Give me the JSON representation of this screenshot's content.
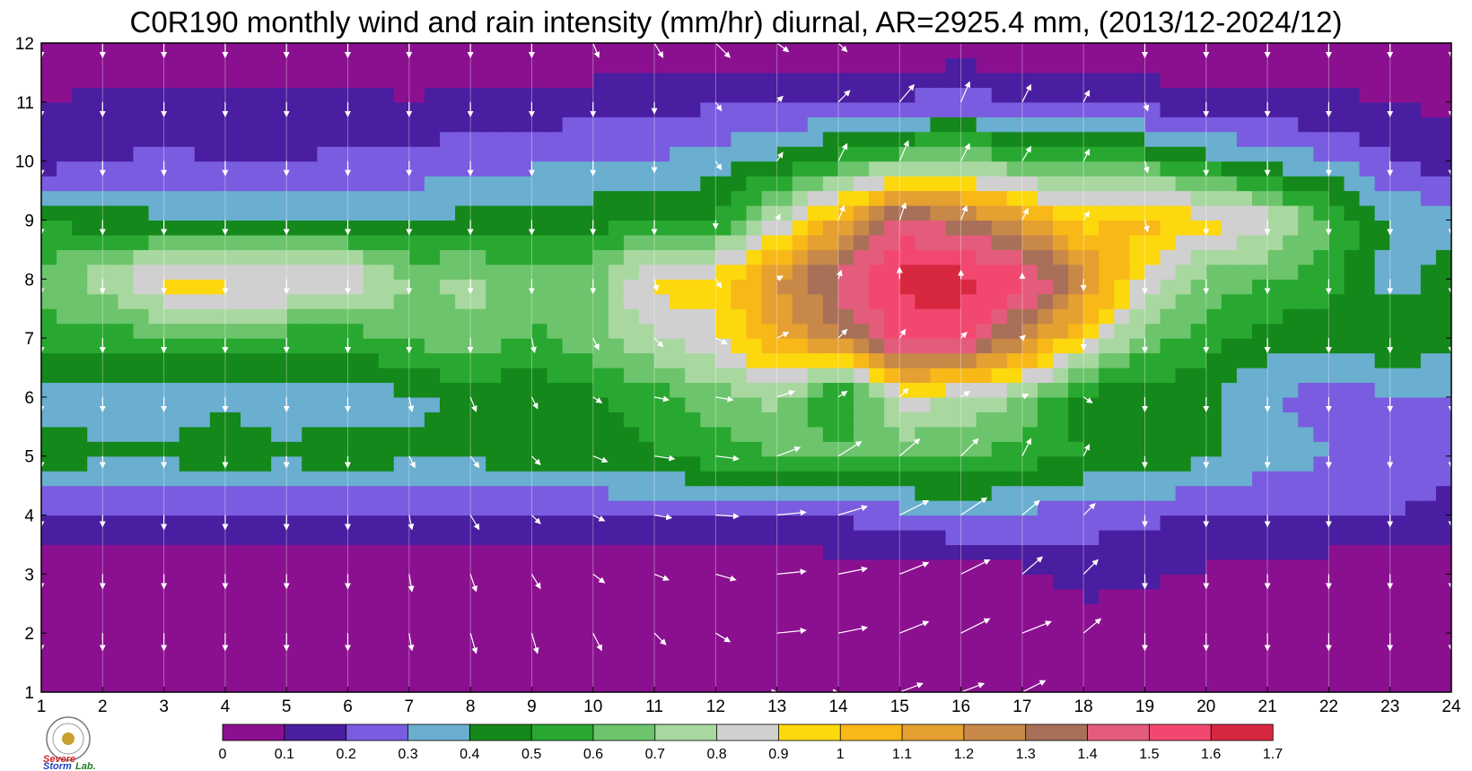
{
  "chart_data": {
    "type": "heatmap",
    "title": "C0R190 monthly wind and rain intensity (mm/hr) diurnal, AR=2925.4 mm, (2013/12-2024/12)",
    "x_ticks": [
      "1",
      "2",
      "3",
      "4",
      "5",
      "6",
      "7",
      "8",
      "9",
      "10",
      "11",
      "12",
      "13",
      "14",
      "15",
      "16",
      "17",
      "18",
      "19",
      "20",
      "21",
      "22",
      "23",
      "24"
    ],
    "y_ticks": [
      "1",
      "2",
      "3",
      "4",
      "5",
      "6",
      "7",
      "8",
      "9",
      "10",
      "11",
      "12"
    ],
    "xlim": [
      1,
      24
    ],
    "ylim": [
      1,
      12
    ],
    "x_axis_meaning": "hour",
    "y_axis_meaning": "month",
    "colorbar": {
      "levels": [
        0,
        0.1,
        0.2,
        0.3,
        0.4,
        0.5,
        0.6,
        0.7,
        0.8,
        0.9,
        1,
        1.1,
        1.2,
        1.3,
        1.4,
        1.5,
        1.6,
        1.7
      ],
      "labels": [
        "0",
        "0.1",
        "0.2",
        "0.3",
        "0.4",
        "0.5",
        "0.6",
        "0.7",
        "0.8",
        "0.9",
        "1",
        "1.1",
        "1.2",
        "1.3",
        "1.4",
        "1.5",
        "1.6",
        "1.7"
      ],
      "colors": [
        "#8b1090",
        "#4a1ea0",
        "#7a5ce0",
        "#6aaed0",
        "#14881a",
        "#28a830",
        "#6cc46c",
        "#a8d8a0",
        "#d0d0d0",
        "#fcd80c",
        "#f8b818",
        "#e4a030",
        "#c88848",
        "#a87058",
        "#e45c7c",
        "#f24870",
        "#d82840"
      ]
    },
    "contour_line_color": "#f0a020",
    "intensity_grid": [
      [
        0.02,
        0.02,
        0.02,
        0.02,
        0.02,
        0.02,
        0.02,
        0.02,
        0.02,
        0.02,
        0.02,
        0.02,
        0.02,
        0.02,
        0.02,
        0.02,
        0.02,
        0.02,
        0.02,
        0.02,
        0.02,
        0.02,
        0.02,
        0.02
      ],
      [
        0.02,
        0.02,
        0.02,
        0.02,
        0.02,
        0.02,
        0.02,
        0.02,
        0.02,
        0.02,
        0.02,
        0.02,
        0.02,
        0.02,
        0.02,
        0.02,
        0.03,
        0.03,
        0.03,
        0.03,
        0.02,
        0.02,
        0.02,
        0.02
      ],
      [
        0.03,
        0.03,
        0.05,
        0.03,
        0.03,
        0.03,
        0.03,
        0.03,
        0.03,
        0.03,
        0.03,
        0.03,
        0.03,
        0.03,
        0.05,
        0.06,
        0.07,
        0.15,
        0.12,
        0.09,
        0.05,
        0.04,
        0.03,
        0.03
      ],
      [
        0.2,
        0.18,
        0.18,
        0.19,
        0.2,
        0.21,
        0.2,
        0.2,
        0.2,
        0.2,
        0.2,
        0.2,
        0.2,
        0.22,
        0.25,
        0.3,
        0.28,
        0.24,
        0.22,
        0.2,
        0.2,
        0.2,
        0.2,
        0.15
      ],
      [
        0.45,
        0.42,
        0.42,
        0.45,
        0.42,
        0.45,
        0.42,
        0.42,
        0.45,
        0.45,
        0.5,
        0.55,
        0.6,
        0.65,
        0.62,
        0.62,
        0.55,
        0.5,
        0.48,
        0.42,
        0.35,
        0.3,
        0.28,
        0.25
      ],
      [
        0.35,
        0.35,
        0.35,
        0.38,
        0.35,
        0.35,
        0.38,
        0.42,
        0.42,
        0.48,
        0.55,
        0.65,
        0.75,
        0.45,
        0.85,
        0.8,
        0.7,
        0.45,
        0.45,
        0.42,
        0.3,
        0.25,
        0.28,
        0.3
      ],
      [
        0.55,
        0.55,
        0.58,
        0.55,
        0.55,
        0.55,
        0.6,
        0.7,
        0.58,
        0.65,
        0.8,
        0.88,
        1.1,
        1.25,
        1.55,
        1.55,
        1.25,
        0.95,
        0.65,
        0.55,
        0.45,
        0.45,
        0.48,
        0.45
      ],
      [
        0.65,
        0.75,
        0.95,
        0.95,
        0.95,
        0.9,
        0.7,
        0.72,
        0.65,
        0.65,
        0.95,
        0.95,
        1.2,
        1.45,
        1.62,
        1.65,
        1.55,
        1.25,
        0.85,
        0.65,
        0.6,
        0.55,
        0.35,
        0.45
      ],
      [
        0.5,
        0.45,
        0.42,
        0.42,
        0.42,
        0.42,
        0.42,
        0.42,
        0.42,
        0.45,
        0.5,
        0.5,
        0.8,
        1.1,
        1.45,
        1.35,
        1.15,
        0.95,
        1.05,
        0.95,
        0.85,
        0.6,
        0.4,
        0.35
      ],
      [
        0.15,
        0.2,
        0.22,
        0.2,
        0.2,
        0.22,
        0.22,
        0.28,
        0.28,
        0.32,
        0.3,
        0.35,
        0.42,
        0.55,
        0.65,
        0.7,
        0.62,
        0.55,
        0.55,
        0.45,
        0.35,
        0.32,
        0.2,
        0.15
      ],
      [
        0.1,
        0.12,
        0.12,
        0.12,
        0.12,
        0.12,
        0.11,
        0.12,
        0.12,
        0.15,
        0.18,
        0.18,
        0.18,
        0.2,
        0.22,
        0.24,
        0.21,
        0.18,
        0.16,
        0.12,
        0.12,
        0.12,
        0.1,
        0.08
      ],
      [
        0.02,
        0.02,
        0.02,
        0.02,
        0.02,
        0.02,
        0.02,
        0.02,
        0.02,
        0.02,
        0.02,
        0.02,
        0.02,
        0.02,
        0.02,
        0.02,
        0.02,
        0.02,
        0.02,
        0.02,
        0.02,
        0.02,
        0.02,
        0.02
      ]
    ],
    "wind_grid_u": [
      [
        0,
        0,
        0,
        0,
        0,
        0,
        0,
        0,
        0,
        0,
        0,
        0,
        0,
        0,
        0.8,
        0.8,
        0.8,
        0,
        0,
        0,
        0,
        0,
        0,
        0
      ],
      [
        0,
        0,
        0,
        0,
        0,
        0,
        0.1,
        0.2,
        0.2,
        0.3,
        0.4,
        0.5,
        1.0,
        1.0,
        1.0,
        1.0,
        1.0,
        0.6,
        0,
        0,
        0,
        0,
        0,
        0
      ],
      [
        0,
        0,
        0,
        0,
        0,
        0,
        0.1,
        0.2,
        0.3,
        0.4,
        0.5,
        0.7,
        1.0,
        1.0,
        1.0,
        1.0,
        0.7,
        0.5,
        0,
        0,
        0,
        0,
        0,
        0
      ],
      [
        0,
        0,
        0,
        0,
        0,
        0,
        0.1,
        0.3,
        0.3,
        0.4,
        0.6,
        0.8,
        1.0,
        1.0,
        1.0,
        0.9,
        0.6,
        0.4,
        0,
        0,
        0,
        0,
        0,
        0
      ],
      [
        0,
        0,
        0,
        0,
        0,
        0,
        0.2,
        0.3,
        0.3,
        0.5,
        0.7,
        0.8,
        0.8,
        0.8,
        0.7,
        0.6,
        0.3,
        0.2,
        0,
        0,
        0,
        0,
        0,
        0
      ],
      [
        0,
        0,
        0,
        0,
        0,
        0,
        0.1,
        0.2,
        0.2,
        0.3,
        0.5,
        0.6,
        0.6,
        0.3,
        0.3,
        0.3,
        0.2,
        0.3,
        0,
        0,
        0,
        0,
        0,
        0
      ],
      [
        0,
        0,
        0,
        0,
        0,
        0,
        0,
        0,
        0.1,
        0.2,
        0.3,
        0.4,
        0.4,
        0.3,
        0.2,
        0.2,
        0.1,
        0,
        0,
        0,
        0,
        0,
        0,
        0
      ],
      [
        0,
        0,
        0,
        0,
        0,
        0,
        0,
        0,
        0,
        0,
        0.1,
        0.2,
        0.2,
        0.1,
        0,
        0,
        0,
        0,
        0,
        0,
        0,
        0,
        0,
        0
      ],
      [
        0,
        0,
        0,
        0,
        0,
        0,
        0,
        0,
        0,
        0,
        0,
        0,
        0.1,
        0.2,
        0.2,
        0.2,
        0.2,
        0.2,
        0.1,
        0,
        0,
        0,
        0,
        0
      ],
      [
        0,
        0,
        0,
        0,
        0,
        0,
        0,
        0,
        0,
        0,
        0,
        0.2,
        0.2,
        0.3,
        0.3,
        0.3,
        0.3,
        0.2,
        0.1,
        0,
        0,
        0,
        0,
        0
      ],
      [
        0,
        0,
        0,
        0,
        0,
        0,
        0,
        0,
        0,
        0,
        0,
        0.2,
        0.2,
        0.4,
        0.5,
        0.3,
        0.3,
        0.2,
        0.1,
        0,
        0,
        0,
        0,
        0
      ],
      [
        0,
        0,
        0,
        0,
        0,
        0,
        0,
        0,
        0,
        0.2,
        0.3,
        0.5,
        0.4,
        0.3,
        0.3,
        0.3,
        0.2,
        0.1,
        0,
        0,
        0,
        0,
        0,
        0
      ]
    ],
    "wind_grid_v": [
      [
        -0.5,
        -0.5,
        -0.5,
        -0.5,
        -0.5,
        -0.5,
        -0.5,
        -0.5,
        -0.5,
        -0.5,
        -0.5,
        -0.5,
        0,
        0,
        0.3,
        0.3,
        0.4,
        -0.4,
        -0.5,
        -0.5,
        -0.5,
        -0.5,
        -0.5,
        -0.5
      ],
      [
        -0.6,
        -0.6,
        -0.6,
        -0.6,
        -0.6,
        -0.6,
        -0.6,
        -0.7,
        -0.7,
        -0.6,
        -0.4,
        -0.3,
        0.1,
        0.2,
        0.4,
        0.5,
        0.4,
        0.5,
        -0.6,
        -0.6,
        -0.6,
        -0.6,
        -0.6,
        -0.6
      ],
      [
        -0.5,
        -0.5,
        -0.5,
        -0.5,
        -0.5,
        -0.5,
        -0.6,
        -0.6,
        -0.5,
        -0.3,
        -0.2,
        -0.2,
        0.1,
        0.2,
        0.4,
        0.5,
        0.6,
        0.5,
        -0.5,
        -0.5,
        -0.5,
        -0.5,
        -0.5,
        -0.5
      ],
      [
        -0.4,
        -0.4,
        -0.5,
        -0.5,
        -0.5,
        -0.5,
        -0.5,
        -0.5,
        -0.3,
        -0.2,
        -0.1,
        -0.05,
        0.1,
        0.3,
        0.5,
        0.6,
        0.5,
        0.4,
        -0.4,
        -0.4,
        -0.4,
        -0.4,
        -0.4,
        -0.4
      ],
      [
        -0.4,
        -0.4,
        -0.4,
        -0.4,
        -0.4,
        -0.4,
        -0.4,
        -0.4,
        -0.3,
        -0.2,
        -0.1,
        -0.1,
        0.3,
        0.5,
        0.6,
        0.6,
        0.6,
        0.4,
        -0.4,
        -0.4,
        -0.4,
        -0.4,
        -0.4,
        -0.4
      ],
      [
        -0.5,
        -0.5,
        -0.5,
        -0.5,
        -0.5,
        -0.5,
        -0.5,
        -0.5,
        -0.4,
        -0.2,
        -0.1,
        -0.1,
        0.2,
        0.2,
        0.3,
        0.2,
        0.1,
        -0.2,
        -0.5,
        -0.5,
        -0.5,
        -0.5,
        -0.5,
        -0.5
      ],
      [
        -0.5,
        -0.5,
        -0.5,
        -0.5,
        -0.5,
        -0.5,
        -0.5,
        -0.5,
        -0.5,
        -0.4,
        -0.3,
        -0.2,
        0.2,
        0.3,
        0.3,
        0.2,
        0.1,
        -0.4,
        -0.5,
        -0.5,
        -0.5,
        -0.5,
        -0.5,
        -0.5
      ],
      [
        -0.5,
        -0.5,
        -0.5,
        -0.5,
        -0.5,
        -0.5,
        -0.5,
        -0.5,
        -0.5,
        -0.5,
        -0.4,
        -0.3,
        0.1,
        0.3,
        0.4,
        0.3,
        0.2,
        -0.4,
        -0.5,
        -0.5,
        -0.5,
        -0.5,
        -0.5,
        -0.5
      ],
      [
        -0.5,
        -0.5,
        -0.5,
        -0.5,
        -0.5,
        -0.5,
        -0.5,
        -0.5,
        -0.5,
        -0.5,
        -0.5,
        -0.3,
        0.2,
        0.5,
        0.6,
        0.5,
        0.4,
        0.3,
        -0.4,
        -0.5,
        -0.5,
        -0.5,
        -0.5,
        -0.5
      ],
      [
        -0.5,
        -0.5,
        -0.5,
        -0.5,
        -0.5,
        -0.5,
        -0.5,
        -0.5,
        -0.5,
        -0.5,
        -0.4,
        -0.3,
        0.3,
        0.6,
        0.7,
        0.6,
        0.5,
        0.4,
        -0.4,
        -0.5,
        -0.5,
        -0.5,
        -0.5,
        -0.5
      ],
      [
        -0.5,
        -0.5,
        -0.5,
        -0.5,
        -0.5,
        -0.5,
        -0.5,
        -0.5,
        -0.5,
        -0.5,
        -0.4,
        -0.3,
        0.2,
        0.4,
        0.6,
        0.7,
        0.6,
        0.4,
        -0.3,
        -0.5,
        -0.5,
        -0.5,
        -0.5,
        -0.5
      ],
      [
        -0.5,
        -0.5,
        -0.5,
        -0.5,
        -0.5,
        -0.5,
        -0.5,
        -0.5,
        -0.5,
        -0.5,
        -0.5,
        -0.5,
        -0.3,
        -0.3,
        0.2,
        0.6,
        0.6,
        0.5,
        -0.5,
        -0.5,
        -0.5,
        -0.5,
        -0.5,
        -0.5
      ]
    ]
  },
  "logo": {
    "text_line1": "Severe",
    "text_line2": "Storm",
    "text_line3": "Lab."
  }
}
